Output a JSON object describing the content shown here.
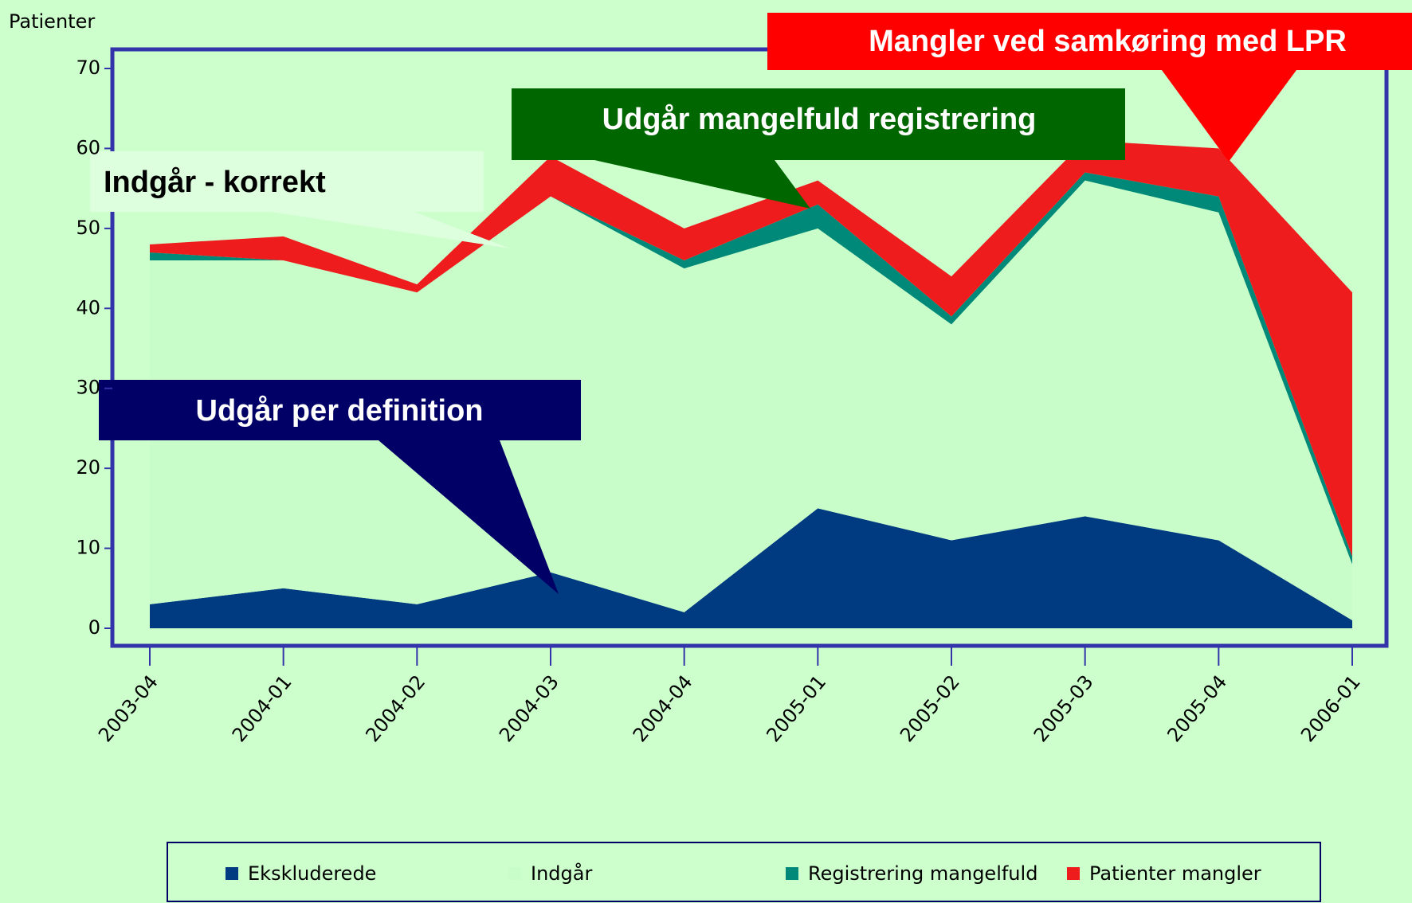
{
  "chart_data": {
    "type": "stacked_area",
    "y_label": "Patienter",
    "categories": [
      "2003-04",
      "2004-01",
      "2004-02",
      "2004-03",
      "2004-04",
      "2005-01",
      "2005-02",
      "2005-03",
      "2005-04",
      "2006-01"
    ],
    "series": [
      {
        "name": "Ekskluderede",
        "color": "#003a80",
        "values": [
          3,
          5,
          3,
          7,
          2,
          15,
          11,
          14,
          11,
          1
        ]
      },
      {
        "name": "Indgår",
        "color": "#c8fcc8",
        "values": [
          43,
          41,
          39,
          47,
          43,
          35,
          27,
          42,
          41,
          7
        ]
      },
      {
        "name": "Registrering mangelfuld",
        "color": "#008878",
        "values": [
          1,
          0,
          0,
          0,
          1,
          3,
          1,
          1,
          2,
          1
        ]
      },
      {
        "name": "Patienter mangler",
        "color": "#ee1c1c",
        "values": [
          1,
          3,
          1,
          5,
          4,
          3,
          5,
          4,
          6,
          33
        ]
      }
    ],
    "ylim": [
      0,
      70
    ],
    "yticks": [
      0,
      10,
      20,
      30,
      40,
      50,
      60,
      70
    ],
    "annotations": [
      "Mangler ved samkøring med LPR",
      "Udgår mangelfuld registrering",
      "Indgår - korrekt",
      "Udgår per definition"
    ]
  }
}
